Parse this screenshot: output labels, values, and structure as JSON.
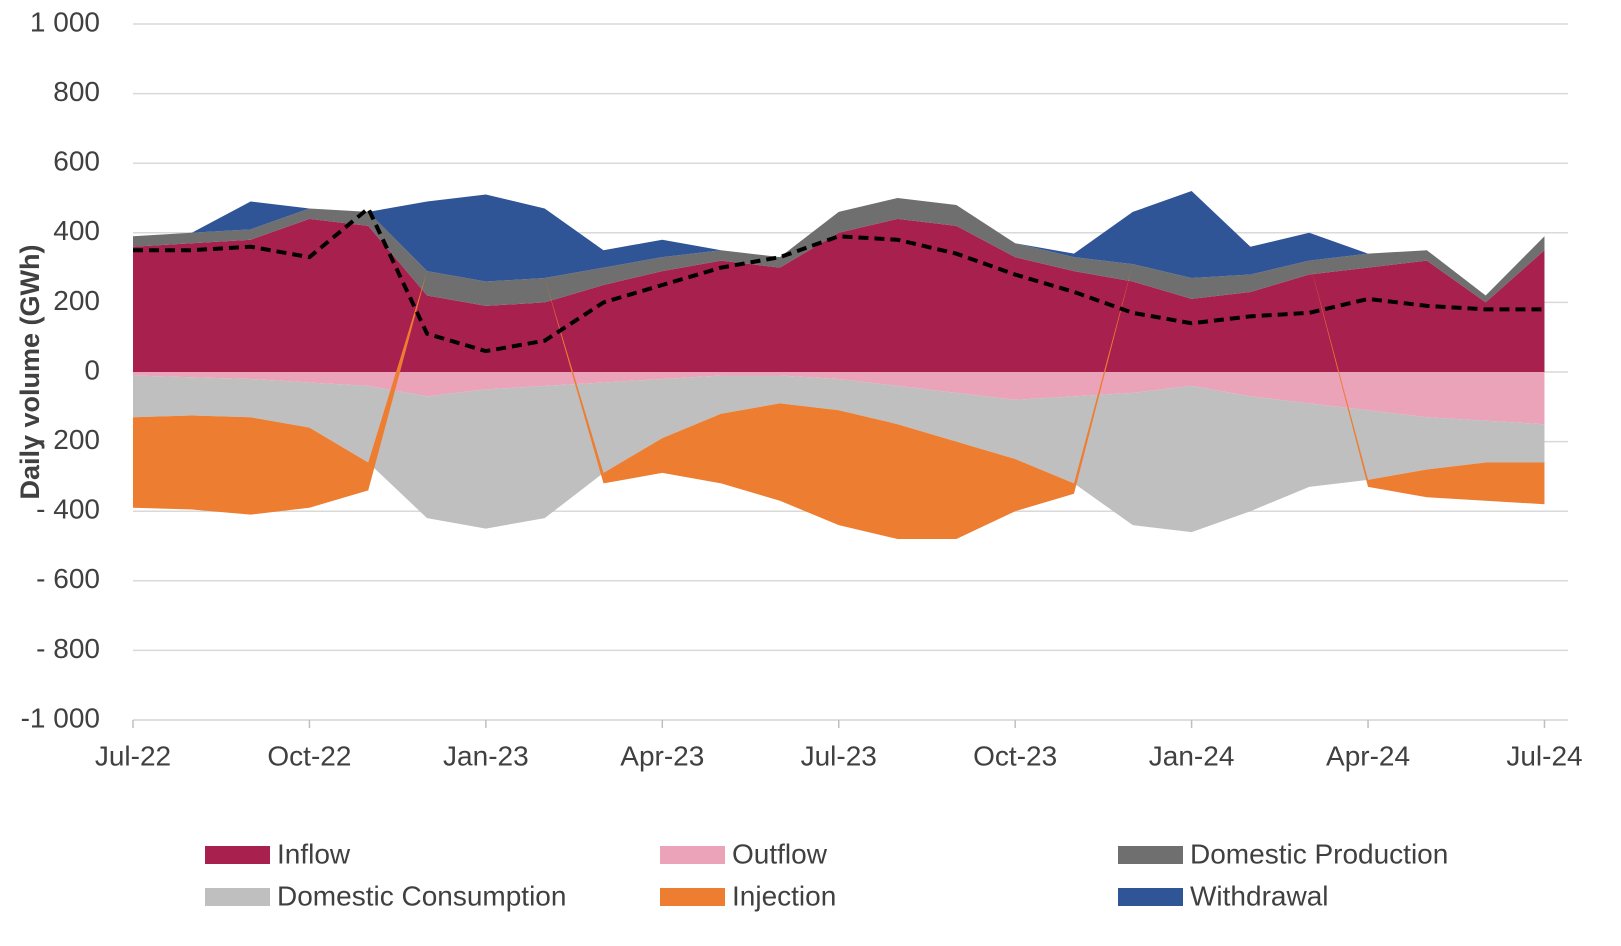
{
  "chart_data": {
    "type": "area",
    "y_label": "Daily volume (GWh)",
    "x": [
      "Jul-22",
      "Aug-22",
      "Sep-22",
      "Oct-22",
      "Nov-22",
      "Dec-22",
      "Jan-23",
      "Feb-23",
      "Mar-23",
      "Apr-23",
      "May-23",
      "Jun-23",
      "Jul-23",
      "Aug-23",
      "Sep-23",
      "Oct-23",
      "Nov-23",
      "Dec-23",
      "Jan-24",
      "Feb-24",
      "Mar-24",
      "Apr-24",
      "May-24",
      "Jun-24",
      "Jul-24"
    ],
    "xticks": [
      "Jul-22",
      "Oct-22",
      "Jan-23",
      "Apr-23",
      "Jul-23",
      "Oct-23",
      "Jan-24",
      "Apr-24",
      "Jul-24"
    ],
    "series": [
      {
        "name": "Inflow",
        "color": "#a8204e",
        "values": [
          360,
          370,
          380,
          440,
          420,
          220,
          190,
          200,
          250,
          290,
          320,
          300,
          400,
          440,
          420,
          330,
          290,
          260,
          210,
          230,
          280,
          300,
          320,
          200,
          350
        ]
      },
      {
        "name": "Outflow",
        "color": "#eba3ba",
        "values": [
          -10,
          -15,
          -20,
          -30,
          -40,
          -70,
          -50,
          -40,
          -30,
          -20,
          -10,
          -10,
          -20,
          -40,
          -60,
          -80,
          -70,
          -60,
          -40,
          -70,
          -90,
          -110,
          -130,
          -140,
          -150
        ]
      },
      {
        "name": "Domestic Production",
        "color": "#6f6f6f",
        "values": [
          30,
          30,
          30,
          30,
          40,
          70,
          70,
          70,
          50,
          40,
          30,
          30,
          60,
          60,
          60,
          40,
          40,
          50,
          60,
          50,
          40,
          40,
          30,
          20,
          40
        ]
      },
      {
        "name": "Domestic Consumption",
        "color": "#bfbfbf",
        "values": [
          -120,
          -110,
          -110,
          -130,
          -220,
          -350,
          -400,
          -380,
          -260,
          -170,
          -110,
          -80,
          -90,
          -110,
          -140,
          -170,
          -250,
          -380,
          -420,
          -330,
          -240,
          -200,
          -150,
          -120,
          -110
        ]
      },
      {
        "name": "Injection",
        "color": "#ed7d31",
        "values": [
          -260,
          -270,
          -280,
          -230,
          -80,
          0,
          0,
          0,
          -30,
          -100,
          -200,
          -280,
          -330,
          -330,
          -280,
          -150,
          -30,
          0,
          0,
          0,
          0,
          -20,
          -80,
          -110,
          -120
        ]
      },
      {
        "name": "Withdrawal",
        "color": "#2f5597",
        "values": [
          0,
          0,
          80,
          0,
          0,
          200,
          250,
          200,
          50,
          50,
          0,
          0,
          0,
          0,
          0,
          0,
          10,
          150,
          250,
          80,
          80,
          0,
          0,
          0,
          0
        ]
      }
    ],
    "line": {
      "color": "#000000",
      "values": [
        350,
        350,
        360,
        330,
        470,
        110,
        60,
        90,
        200,
        250,
        300,
        330,
        390,
        380,
        340,
        280,
        230,
        170,
        140,
        160,
        170,
        210,
        190,
        180,
        180
      ]
    },
    "ylim": [
      -1000,
      1000
    ],
    "yticks": [
      {
        "value": -1000,
        "label": "-1 000"
      },
      {
        "value": -800,
        "label": "- 800"
      },
      {
        "value": -600,
        "label": "- 600"
      },
      {
        "value": -400,
        "label": "- 400"
      },
      {
        "value": -200,
        "label": "- 200"
      },
      0,
      200,
      400,
      600,
      800,
      {
        "value": 1000,
        "label": "1 000"
      }
    ],
    "grid": true,
    "legend": "bottom"
  }
}
